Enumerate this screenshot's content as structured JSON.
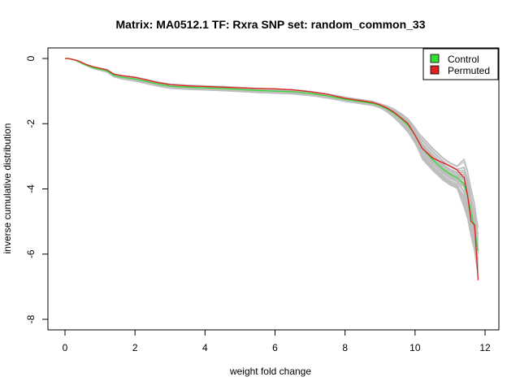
{
  "chart_data": {
    "type": "line",
    "title": "Matrix: MA0512.1 TF: Rxra SNP set: random_common_33",
    "xlabel": "weight fold change",
    "ylabel": "inverse cumulative distribution",
    "xlim": [
      0,
      12
    ],
    "ylim": [
      -8,
      0
    ],
    "x_ticks": [
      "0",
      "2",
      "4",
      "6",
      "8",
      "10",
      "12"
    ],
    "y_ticks": [
      "0",
      "-2",
      "-4",
      "-6",
      "-8"
    ],
    "grid": false,
    "legend_position": "top-right",
    "legend": [
      {
        "label": "Control",
        "color": "#33dd33"
      },
      {
        "label": "Permuted",
        "color": "#dd2222"
      }
    ],
    "background_series": {
      "description_visible": false,
      "color": "#bebebe",
      "count": 60
    },
    "series": [
      {
        "name": "Control",
        "color": "#33dd33",
        "x": [
          0.0,
          0.1,
          0.3,
          0.4,
          0.6,
          0.8,
          1.0,
          1.2,
          1.4,
          1.6,
          1.8,
          2.0,
          2.3,
          2.6,
          3.0,
          3.5,
          4.0,
          4.5,
          5.0,
          5.5,
          6.0,
          6.5,
          7.0,
          7.5,
          8.0,
          8.5,
          8.8,
          9.0,
          9.2,
          9.4,
          9.6,
          9.8,
          10.0,
          10.2,
          10.5,
          10.8,
          11.0,
          11.2,
          11.4,
          11.5,
          11.6,
          11.7,
          11.75,
          11.8
        ],
        "y": [
          0.0,
          0.0,
          -0.05,
          -0.1,
          -0.2,
          -0.28,
          -0.33,
          -0.38,
          -0.52,
          -0.57,
          -0.6,
          -0.63,
          -0.7,
          -0.77,
          -0.85,
          -0.88,
          -0.9,
          -0.92,
          -0.95,
          -0.98,
          -1.0,
          -1.02,
          -1.07,
          -1.15,
          -1.25,
          -1.33,
          -1.38,
          -1.45,
          -1.55,
          -1.68,
          -1.85,
          -2.05,
          -2.35,
          -2.75,
          -3.1,
          -3.4,
          -3.55,
          -3.65,
          -3.85,
          -4.2,
          -4.75,
          -5.2,
          -5.6,
          -5.9
        ]
      },
      {
        "name": "Permuted",
        "color": "#dd2222",
        "x": [
          0.0,
          0.1,
          0.3,
          0.4,
          0.6,
          0.8,
          1.0,
          1.2,
          1.4,
          1.6,
          1.8,
          2.0,
          2.3,
          2.6,
          3.0,
          3.5,
          4.0,
          4.5,
          5.0,
          5.5,
          6.0,
          6.5,
          7.0,
          7.5,
          8.0,
          8.5,
          8.8,
          9.0,
          9.2,
          9.4,
          9.6,
          9.8,
          10.0,
          10.2,
          10.5,
          10.8,
          11.0,
          11.2,
          11.4,
          11.5,
          11.6,
          11.7,
          11.75,
          11.8
        ],
        "y": [
          0.0,
          0.0,
          -0.05,
          -0.08,
          -0.18,
          -0.25,
          -0.3,
          -0.35,
          -0.48,
          -0.52,
          -0.55,
          -0.58,
          -0.65,
          -0.73,
          -0.8,
          -0.84,
          -0.86,
          -0.88,
          -0.9,
          -0.92,
          -0.93,
          -0.96,
          -1.02,
          -1.1,
          -1.22,
          -1.3,
          -1.35,
          -1.42,
          -1.52,
          -1.65,
          -1.82,
          -2.0,
          -2.35,
          -2.75,
          -3.05,
          -3.2,
          -3.3,
          -3.42,
          -3.65,
          -4.2,
          -5.0,
          -5.1,
          -5.9,
          -6.8
        ]
      }
    ]
  }
}
